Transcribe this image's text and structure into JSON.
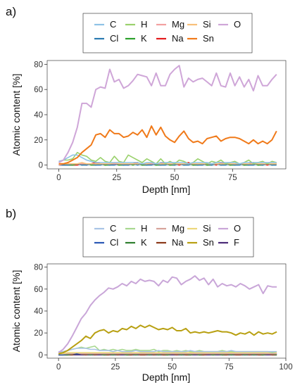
{
  "chart_data": [
    {
      "type": "line",
      "panel_label": "a)",
      "xlabel": "Depth [nm]",
      "ylabel": "Atomic content [%]",
      "xlim": [
        -5,
        98
      ],
      "ylim": [
        -3,
        83
      ],
      "xticks": [
        0,
        25,
        50,
        75
      ],
      "yticks": [
        0,
        20,
        40,
        60,
        80
      ],
      "grid": false,
      "legend_position": "top",
      "legend": [
        {
          "key": "C",
          "label": "C",
          "color": "#8ec3e6"
        },
        {
          "key": "H",
          "label": "H",
          "color": "#9ad16c"
        },
        {
          "key": "Mg",
          "label": "Mg",
          "color": "#f3a0a0"
        },
        {
          "key": "Si",
          "label": "Si",
          "color": "#f8c07a"
        },
        {
          "key": "O",
          "label": "O",
          "color": "#cfa6d8"
        },
        {
          "key": "Cl",
          "label": "Cl",
          "color": "#2a7ab0"
        },
        {
          "key": "K",
          "label": "K",
          "color": "#2ca02c"
        },
        {
          "key": "Na",
          "label": "Na",
          "color": "#e31a1c"
        },
        {
          "key": "Sn",
          "label": "Sn",
          "color": "#f07a1a"
        }
      ],
      "x": [
        0,
        2,
        4,
        6,
        8,
        10,
        12,
        14,
        16,
        18,
        20,
        22,
        24,
        26,
        28,
        30,
        32,
        34,
        36,
        38,
        40,
        42,
        44,
        46,
        48,
        50,
        52,
        54,
        56,
        58,
        60,
        62,
        64,
        66,
        68,
        70,
        72,
        74,
        76,
        78,
        80,
        82,
        84,
        86,
        88,
        90,
        92,
        94
      ],
      "series": [
        {
          "key": "O",
          "values": [
            2,
            4,
            10,
            18,
            30,
            49,
            49,
            46,
            60,
            62,
            61,
            76,
            66,
            68,
            61,
            63,
            67,
            72,
            71,
            70,
            63,
            73,
            63,
            63,
            72,
            76,
            79,
            62,
            69,
            66,
            68,
            69,
            66,
            63,
            73,
            63,
            62,
            73,
            63,
            70,
            62,
            68,
            59,
            71,
            63,
            63,
            68,
            72
          ]
        },
        {
          "key": "Sn",
          "values": [
            1,
            1,
            2,
            4,
            6,
            10,
            13,
            16,
            24,
            25,
            22,
            28,
            25,
            25,
            22,
            23,
            26,
            24,
            28,
            22,
            31,
            24,
            30,
            23,
            20,
            18,
            23,
            27,
            21,
            18,
            19,
            17,
            21,
            22,
            23,
            19,
            21,
            22,
            22,
            21,
            19,
            17,
            20,
            17,
            19,
            17,
            20,
            27
          ]
        },
        {
          "key": "C",
          "values": [
            3,
            4,
            6,
            8,
            8,
            6,
            4,
            3,
            2,
            2,
            2,
            2,
            2,
            2,
            2,
            2,
            2,
            2,
            1,
            2,
            2,
            1,
            2,
            2,
            2,
            2,
            2,
            2,
            1,
            2,
            2,
            2,
            2,
            1,
            2,
            2,
            2,
            2,
            2,
            1,
            2,
            2,
            2,
            2,
            2,
            2,
            2,
            2
          ]
        },
        {
          "key": "H",
          "values": [
            3,
            4,
            4,
            5,
            10,
            8,
            7,
            4,
            3,
            6,
            3,
            2,
            7,
            3,
            2,
            8,
            6,
            4,
            2,
            5,
            3,
            1,
            5,
            1,
            3,
            1,
            4,
            3,
            1,
            2,
            5,
            3,
            1,
            3,
            2,
            4,
            1,
            2,
            3,
            1,
            2,
            4,
            1,
            2,
            3,
            1,
            3,
            2
          ]
        },
        {
          "key": "Si",
          "values": [
            1,
            1,
            1,
            1,
            1,
            2,
            1,
            1,
            1,
            1,
            1,
            1,
            2,
            1,
            1,
            1,
            1,
            1,
            1,
            1,
            2,
            1,
            1,
            1,
            1,
            1,
            1,
            1,
            1,
            1,
            1,
            1,
            1,
            1,
            1,
            1,
            1,
            1,
            1,
            1,
            1,
            1,
            1,
            1,
            1,
            1,
            1,
            1
          ]
        },
        {
          "key": "Mg",
          "values": [
            0,
            1,
            1,
            1,
            1,
            1,
            1,
            1,
            1,
            1,
            1,
            1,
            1,
            1,
            1,
            1,
            1,
            1,
            1,
            1,
            1,
            1,
            1,
            1,
            1,
            1,
            1,
            1,
            1,
            1,
            1,
            1,
            1,
            1,
            1,
            1,
            1,
            1,
            1,
            1,
            1,
            1,
            1,
            1,
            1,
            1,
            1,
            1
          ]
        },
        {
          "key": "Cl",
          "values": [
            0,
            0,
            0,
            1,
            1,
            0,
            0,
            1,
            0,
            0,
            1,
            0,
            0,
            1,
            0,
            0,
            1,
            0,
            1,
            0,
            0,
            1,
            0,
            0,
            1,
            0,
            1,
            0,
            0,
            1,
            0,
            0,
            1,
            0,
            1,
            0,
            0,
            1,
            0,
            0,
            1,
            0,
            0,
            1,
            0,
            1,
            0,
            0
          ]
        },
        {
          "key": "K",
          "values": [
            0,
            1,
            0,
            0,
            1,
            0,
            1,
            0,
            0,
            1,
            0,
            0,
            1,
            0,
            0,
            1,
            0,
            1,
            0,
            0,
            1,
            0,
            0,
            1,
            0,
            0,
            1,
            0,
            1,
            0,
            0,
            1,
            0,
            0,
            1,
            0,
            1,
            0,
            0,
            1,
            0,
            0,
            1,
            0,
            0,
            1,
            0,
            1
          ]
        },
        {
          "key": "Na",
          "values": [
            0,
            0,
            0,
            0,
            0,
            1,
            0,
            1,
            2,
            1,
            0,
            1,
            1,
            0,
            1,
            0,
            1,
            2,
            0,
            1,
            1,
            0,
            2,
            1,
            0,
            1,
            0,
            1,
            2,
            0,
            1,
            1,
            0,
            1,
            0,
            2,
            1,
            0,
            1,
            1,
            0,
            1,
            2,
            0,
            1,
            0,
            1,
            1
          ]
        }
      ]
    },
    {
      "type": "line",
      "panel_label": "b)",
      "xlabel": "Depth [nm]",
      "ylabel": "Atomic content [%]",
      "xlim": [
        -5,
        100
      ],
      "ylim": [
        -3,
        83
      ],
      "xticks": [
        0,
        25,
        50,
        75,
        100
      ],
      "yticks": [
        0,
        20,
        40,
        60,
        80
      ],
      "grid": false,
      "legend_position": "top",
      "legend": [
        {
          "key": "C",
          "label": "C",
          "color": "#a9c4e6"
        },
        {
          "key": "H",
          "label": "H",
          "color": "#a8d890"
        },
        {
          "key": "Mg",
          "label": "Mg",
          "color": "#d7a39a"
        },
        {
          "key": "Si",
          "label": "Si",
          "color": "#ecd77a"
        },
        {
          "key": "O",
          "label": "O",
          "color": "#c9a6d8"
        },
        {
          "key": "Cl",
          "label": "Cl",
          "color": "#2b58b5"
        },
        {
          "key": "K",
          "label": "K",
          "color": "#2f7f2f"
        },
        {
          "key": "Na",
          "label": "Na",
          "color": "#8b3a1a"
        },
        {
          "key": "Sn",
          "label": "Sn",
          "color": "#b8a012"
        },
        {
          "key": "F",
          "label": "F",
          "color": "#4b2b78"
        }
      ],
      "x": [
        0,
        2,
        4,
        6,
        8,
        10,
        12,
        14,
        16,
        18,
        20,
        22,
        24,
        26,
        28,
        30,
        32,
        34,
        36,
        38,
        40,
        42,
        44,
        46,
        48,
        50,
        52,
        54,
        56,
        58,
        60,
        62,
        64,
        66,
        68,
        70,
        72,
        74,
        76,
        78,
        80,
        82,
        84,
        86,
        88,
        90,
        92,
        94,
        96
      ],
      "series": [
        {
          "key": "O",
          "values": [
            2,
            5,
            10,
            17,
            25,
            33,
            38,
            45,
            50,
            54,
            57,
            61,
            60,
            62,
            65,
            63,
            67,
            65,
            69,
            67,
            68,
            67,
            63,
            68,
            66,
            71,
            70,
            64,
            67,
            69,
            72,
            68,
            70,
            64,
            69,
            62,
            65,
            63,
            64,
            62,
            65,
            63,
            60,
            62,
            64,
            56,
            63,
            62,
            62
          ]
        },
        {
          "key": "Sn",
          "values": [
            1,
            2,
            4,
            7,
            10,
            13,
            17,
            15,
            20,
            22,
            23,
            20,
            22,
            21,
            24,
            23,
            26,
            24,
            27,
            25,
            27,
            25,
            23,
            24,
            23,
            25,
            22,
            22,
            24,
            20,
            21,
            20,
            21,
            20,
            21,
            22,
            21,
            21,
            20,
            18,
            20,
            19,
            21,
            18,
            21,
            19,
            20,
            19,
            21
          ]
        },
        {
          "key": "C",
          "values": [
            3,
            3,
            4,
            5,
            6,
            6,
            6,
            5,
            5,
            4,
            4,
            4,
            3,
            4,
            3,
            3,
            3,
            4,
            3,
            3,
            3,
            3,
            4,
            3,
            3,
            3,
            3,
            3,
            3,
            4,
            3,
            3,
            3,
            3,
            3,
            3,
            3,
            3,
            4,
            3,
            3,
            3,
            3,
            3,
            3,
            3,
            3,
            3,
            3
          ]
        },
        {
          "key": "H",
          "values": [
            2,
            3,
            4,
            5,
            6,
            7,
            6,
            7,
            8,
            4,
            5,
            4,
            5,
            4,
            5,
            4,
            4,
            5,
            4,
            4,
            4,
            5,
            3,
            4,
            4,
            3,
            4,
            3,
            4,
            3,
            3,
            4,
            3,
            3,
            3,
            3,
            4,
            3,
            3,
            3,
            3,
            3,
            3,
            3,
            3,
            3,
            3,
            2,
            3
          ]
        },
        {
          "key": "Si",
          "values": [
            1,
            1,
            2,
            2,
            2,
            2,
            2,
            2,
            2,
            2,
            2,
            2,
            2,
            2,
            2,
            2,
            2,
            2,
            2,
            2,
            2,
            2,
            2,
            2,
            2,
            2,
            2,
            2,
            2,
            2,
            2,
            2,
            2,
            2,
            2,
            2,
            2,
            2,
            2,
            2,
            2,
            2,
            2,
            2,
            2,
            2,
            2,
            2,
            2
          ]
        },
        {
          "key": "Mg",
          "values": [
            1,
            1,
            1,
            1,
            2,
            1,
            1,
            1,
            1,
            1,
            1,
            1,
            1,
            1,
            1,
            1,
            1,
            1,
            1,
            1,
            1,
            1,
            1,
            1,
            1,
            1,
            1,
            1,
            1,
            1,
            1,
            1,
            1,
            1,
            1,
            1,
            1,
            1,
            1,
            1,
            1,
            1,
            1,
            1,
            1,
            1,
            1,
            1,
            1
          ]
        },
        {
          "key": "Cl",
          "values": [
            0,
            0,
            1,
            1,
            1,
            1,
            1,
            1,
            1,
            1,
            1,
            1,
            1,
            1,
            1,
            1,
            1,
            1,
            1,
            1,
            1,
            1,
            1,
            1,
            1,
            1,
            1,
            1,
            1,
            1,
            1,
            1,
            1,
            1,
            1,
            1,
            1,
            1,
            1,
            1,
            1,
            1,
            1,
            1,
            1,
            1,
            1,
            1,
            1
          ]
        },
        {
          "key": "K",
          "values": [
            0,
            0,
            0,
            1,
            1,
            1,
            1,
            0,
            1,
            1,
            0,
            1,
            0,
            1,
            1,
            0,
            1,
            0,
            1,
            1,
            0,
            1,
            0,
            1,
            0,
            1,
            1,
            0,
            1,
            0,
            1,
            0,
            1,
            1,
            0,
            1,
            0,
            1,
            0,
            1,
            1,
            0,
            1,
            0,
            1,
            0,
            1,
            1,
            0
          ]
        },
        {
          "key": "Na",
          "values": [
            0,
            0,
            0,
            0,
            1,
            1,
            0,
            1,
            0,
            1,
            0,
            0,
            1,
            0,
            1,
            0,
            0,
            1,
            0,
            0,
            1,
            0,
            1,
            0,
            0,
            1,
            0,
            1,
            0,
            0,
            1,
            0,
            0,
            1,
            0,
            1,
            0,
            0,
            1,
            0,
            0,
            1,
            0,
            1,
            0,
            0,
            1,
            0,
            0
          ]
        },
        {
          "key": "F",
          "values": [
            0,
            0,
            0,
            0,
            0,
            0,
            0,
            0,
            0,
            0,
            0,
            0,
            0,
            0,
            0,
            0,
            0,
            0,
            0,
            0,
            0,
            0,
            0,
            0,
            0,
            0,
            0,
            0,
            0,
            0,
            0,
            0,
            0,
            0,
            0,
            0,
            0,
            0,
            0,
            0,
            0,
            0,
            0,
            0,
            0,
            0,
            0,
            0,
            0
          ]
        }
      ]
    }
  ]
}
